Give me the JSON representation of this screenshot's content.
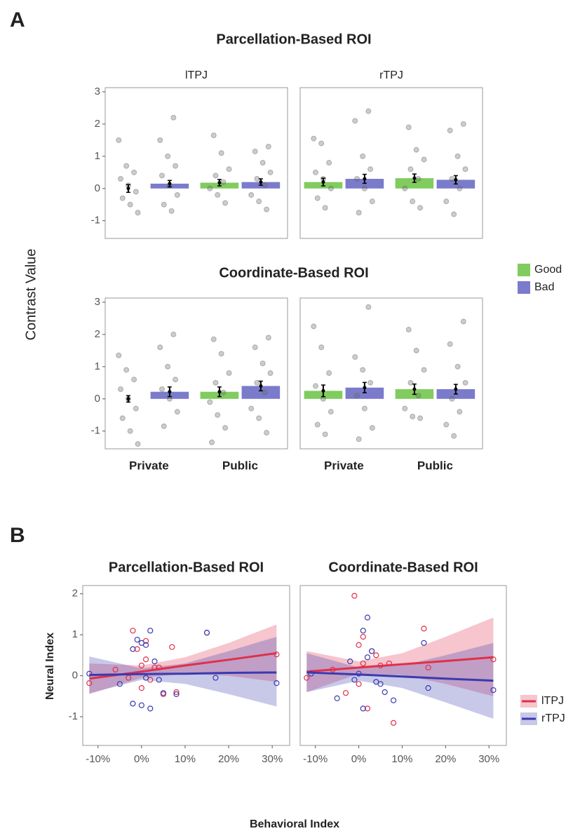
{
  "panel_labels": [
    "A",
    "B"
  ],
  "chart_data": [
    {
      "type": "bar",
      "title": "Parcellation-Based ROI",
      "facet": "lTPJ",
      "y_label": "Contrast Value",
      "categories": [
        null,
        null
      ],
      "ylim": [
        -1.55,
        3.13
      ],
      "yticks": [
        -1,
        0,
        1,
        2,
        3
      ],
      "series": [
        {
          "name": "Good",
          "color": "#80cc5e",
          "values": [
            0.0,
            0.18
          ],
          "errors": [
            0.12,
            0.1
          ],
          "points": [
            [
              1.5,
              0.7,
              0.5,
              0.3,
              0.1,
              -0.1,
              -0.3,
              -0.5,
              -0.75
            ],
            [
              1.65,
              1.1,
              0.6,
              0.4,
              0.2,
              0.0,
              -0.2,
              -0.45
            ]
          ]
        },
        {
          "name": "Bad",
          "color": "#7b7bcb",
          "values": [
            0.15,
            0.2
          ],
          "errors": [
            0.1,
            0.1
          ],
          "points": [
            [
              2.2,
              1.5,
              1.0,
              0.7,
              0.4,
              0.1,
              -0.2,
              -0.5,
              -0.7
            ],
            [
              1.3,
              1.15,
              0.8,
              0.5,
              0.3,
              0.1,
              -0.2,
              -0.4,
              -0.65
            ]
          ]
        }
      ]
    },
    {
      "type": "bar",
      "facet": "rTPJ",
      "categories": [
        null,
        null
      ],
      "ylim": [
        -1.55,
        3.13
      ],
      "series": [
        {
          "name": "Good",
          "color": "#80cc5e",
          "values": [
            0.2,
            0.32
          ],
          "errors": [
            0.12,
            0.13
          ],
          "points": [
            [
              1.55,
              1.4,
              0.8,
              0.5,
              0.3,
              0.0,
              -0.3,
              -0.6
            ],
            [
              1.9,
              1.2,
              0.9,
              0.6,
              0.3,
              0.0,
              -0.4,
              -0.6
            ]
          ]
        },
        {
          "name": "Bad",
          "color": "#7b7bcb",
          "values": [
            0.3,
            0.27
          ],
          "errors": [
            0.14,
            0.13
          ],
          "points": [
            [
              2.4,
              2.1,
              1.0,
              0.6,
              0.3,
              0.0,
              -0.4,
              -0.75
            ],
            [
              2.0,
              1.8,
              1.0,
              0.6,
              0.3,
              0.0,
              -0.4,
              -0.8
            ]
          ]
        }
      ]
    },
    {
      "type": "bar",
      "title": "Coordinate-Based ROI",
      "categories": [
        "Private",
        "Public"
      ],
      "ylim": [
        -1.55,
        3.13
      ],
      "yticks": [
        -1,
        0,
        1,
        2,
        3
      ],
      "series": [
        {
          "name": "Good",
          "color": "#80cc5e",
          "values": [
            0.0,
            0.22
          ],
          "errors": [
            0.1,
            0.15
          ],
          "points": [
            [
              1.35,
              0.9,
              0.6,
              0.3,
              0.0,
              -0.3,
              -0.6,
              -1.0,
              -1.4
            ],
            [
              1.85,
              1.4,
              0.8,
              0.5,
              0.2,
              -0.1,
              -0.5,
              -0.9,
              -1.35
            ]
          ]
        },
        {
          "name": "Bad",
          "color": "#7b7bcb",
          "values": [
            0.22,
            0.4
          ],
          "errors": [
            0.15,
            0.15
          ],
          "points": [
            [
              2.0,
              1.6,
              1.0,
              0.6,
              0.3,
              0.0,
              -0.4,
              -0.85
            ],
            [
              1.9,
              1.6,
              1.1,
              0.8,
              0.5,
              0.2,
              -0.3,
              -0.6,
              -1.05
            ]
          ]
        }
      ]
    },
    {
      "type": "bar",
      "categories": [
        "Private",
        "Public"
      ],
      "ylim": [
        -1.55,
        3.13
      ],
      "series": [
        {
          "name": "Good",
          "color": "#80cc5e",
          "values": [
            0.25,
            0.3
          ],
          "errors": [
            0.18,
            0.16
          ],
          "points": [
            [
              2.25,
              1.6,
              0.8,
              0.4,
              0.0,
              -0.4,
              -0.8,
              -1.1
            ],
            [
              2.15,
              1.5,
              0.9,
              0.5,
              0.1,
              -0.3,
              -0.55,
              -0.6
            ]
          ]
        },
        {
          "name": "Bad",
          "color": "#7b7bcb",
          "values": [
            0.35,
            0.3
          ],
          "errors": [
            0.16,
            0.15
          ],
          "points": [
            [
              2.85,
              1.3,
              0.9,
              0.5,
              0.1,
              -0.3,
              -0.9,
              -1.25
            ],
            [
              2.4,
              1.7,
              1.0,
              0.5,
              0.0,
              -0.4,
              -0.8,
              -1.15
            ]
          ]
        }
      ]
    },
    {
      "type": "scatter",
      "title": "Parcellation-Based ROI",
      "y_label": "Neural Index",
      "x_label": "Behavioral Index",
      "xlim": [
        -13.5,
        34
      ],
      "ylim": [
        -1.7,
        2.2
      ],
      "yticks": [
        -1,
        0,
        1,
        2
      ],
      "xticks": [
        {
          "value": -10,
          "label": "-10%"
        },
        {
          "value": 0,
          "label": "0%"
        },
        {
          "value": 10,
          "label": "10%"
        },
        {
          "value": 20,
          "label": "20%"
        },
        {
          "value": 30,
          "label": "30%"
        }
      ],
      "series": [
        {
          "name": "lTPJ",
          "color": "#e0304a",
          "x": [
            -12,
            -6,
            -3,
            -2,
            -1,
            0,
            0,
            1,
            1,
            2,
            3,
            4,
            5,
            7,
            8,
            15,
            31
          ],
          "values": [
            -0.18,
            0.15,
            -0.05,
            1.1,
            0.65,
            0.25,
            -0.3,
            0.85,
            0.4,
            -0.1,
            0.2,
            0.2,
            -0.45,
            0.7,
            -0.4,
            1.05,
            0.52
          ],
          "fit": {
            "x": [
              -12,
              0,
              10,
              20,
              31
            ],
            "y": [
              -0.07,
              0.1,
              0.25,
              0.39,
              0.55
            ],
            "upper": [
              0.3,
              0.25,
              0.45,
              0.8,
              1.25
            ],
            "lower": [
              -0.45,
              -0.05,
              0.05,
              0.0,
              -0.15
            ]
          }
        },
        {
          "name": "rTPJ",
          "color": "#3a3ab0",
          "x": [
            -12,
            -5,
            -2,
            -2,
            -1,
            0,
            0,
            1,
            1,
            2,
            2,
            3,
            4,
            5,
            8,
            15,
            17,
            31
          ],
          "values": [
            0.05,
            -0.2,
            0.65,
            -0.68,
            0.88,
            0.8,
            -0.72,
            0.75,
            -0.05,
            1.1,
            -0.8,
            0.35,
            -0.1,
            -0.42,
            -0.45,
            1.05,
            -0.05,
            -0.18
          ],
          "fit": {
            "x": [
              -12,
              0,
              10,
              20,
              31
            ],
            "y": [
              0.02,
              0.04,
              0.05,
              0.07,
              0.08
            ],
            "upper": [
              0.47,
              0.18,
              0.3,
              0.6,
              0.95
            ],
            "lower": [
              -0.43,
              -0.1,
              -0.2,
              -0.45,
              -0.75
            ]
          }
        }
      ]
    },
    {
      "type": "scatter",
      "title": "Coordinate-Based ROI",
      "xlim": [
        -13.5,
        34
      ],
      "ylim": [
        -1.7,
        2.2
      ],
      "xticks": [
        {
          "value": -10,
          "label": "-10%"
        },
        {
          "value": 0,
          "label": "0%"
        },
        {
          "value": 10,
          "label": "10%"
        },
        {
          "value": 20,
          "label": "20%"
        },
        {
          "value": 30,
          "label": "30%"
        }
      ],
      "series": [
        {
          "name": "lTPJ",
          "color": "#e0304a",
          "x": [
            -12,
            -6,
            -3,
            -1,
            0,
            0,
            1,
            1,
            2,
            3,
            4,
            5,
            7,
            8,
            15,
            16,
            31
          ],
          "values": [
            -0.05,
            0.15,
            -0.42,
            1.95,
            0.75,
            -0.2,
            0.95,
            0.3,
            -0.8,
            0.6,
            0.5,
            0.25,
            0.3,
            -1.15,
            1.15,
            0.2,
            0.4
          ],
          "fit": {
            "x": [
              -12,
              0,
              10,
              20,
              31
            ],
            "y": [
              0.1,
              0.2,
              0.28,
              0.36,
              0.45
            ],
            "upper": [
              0.6,
              0.35,
              0.55,
              0.95,
              1.42
            ],
            "lower": [
              -0.4,
              0.05,
              0.02,
              -0.2,
              -0.5
            ]
          }
        },
        {
          "name": "rTPJ",
          "color": "#3a3ab0",
          "x": [
            -11,
            -5,
            -2,
            -1,
            0,
            1,
            1,
            2,
            2,
            3,
            4,
            5,
            6,
            8,
            15,
            16,
            31
          ],
          "values": [
            0.05,
            -0.55,
            0.35,
            -0.1,
            0.05,
            1.1,
            -0.8,
            1.42,
            0.45,
            0.6,
            -0.15,
            -0.2,
            -0.4,
            -0.6,
            0.8,
            -0.3,
            -0.35
          ],
          "fit": {
            "x": [
              -12,
              0,
              10,
              20,
              31
            ],
            "y": [
              0.08,
              0.03,
              -0.02,
              -0.07,
              -0.12
            ],
            "upper": [
              0.55,
              0.2,
              0.25,
              0.5,
              0.8
            ],
            "lower": [
              -0.4,
              -0.12,
              -0.3,
              -0.65,
              -1.05
            ]
          }
        }
      ]
    }
  ]
}
